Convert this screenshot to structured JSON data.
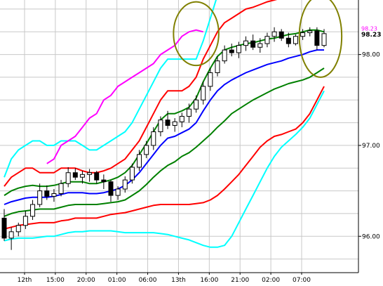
{
  "chart_data": {
    "type": "line",
    "title": "",
    "xlabel": "",
    "ylabel": "",
    "ylim": [
      95.6,
      98.6
    ],
    "grid": true,
    "x_tick_labels": [
      "12th",
      "15:00",
      "20:00",
      "01:00",
      "06:00",
      "13th",
      "16:00",
      "21:00",
      "02:00",
      "07:00"
    ],
    "y_tick_labels": [
      {
        "value": 96.0,
        "label": "96.00"
      },
      {
        "value": 97.0,
        "label": "97.00"
      },
      {
        "value": 98.0,
        "label": "98.00"
      }
    ],
    "last_price_label": "98.23",
    "last_price_value": 98.23,
    "upper_price_label": "98.23",
    "upper_price_value": 98.27,
    "x_count": 46,
    "candles": [
      [
        96.2,
        96.3,
        95.95,
        95.98
      ],
      [
        95.98,
        96.1,
        95.85,
        96.05
      ],
      [
        96.05,
        96.15,
        96.0,
        96.12
      ],
      [
        96.12,
        96.28,
        96.08,
        96.22
      ],
      [
        96.22,
        96.4,
        96.18,
        96.35
      ],
      [
        96.35,
        96.58,
        96.32,
        96.5
      ],
      [
        96.5,
        96.56,
        96.4,
        96.44
      ],
      [
        96.44,
        96.52,
        96.38,
        96.47
      ],
      [
        96.47,
        96.62,
        96.44,
        96.58
      ],
      [
        96.58,
        96.76,
        96.54,
        96.7
      ],
      [
        96.7,
        96.75,
        96.62,
        96.65
      ],
      [
        96.65,
        96.72,
        96.58,
        96.68
      ],
      [
        96.68,
        96.74,
        96.6,
        96.7
      ],
      [
        96.7,
        96.72,
        96.58,
        96.62
      ],
      [
        96.62,
        96.68,
        96.52,
        96.6
      ],
      [
        96.6,
        96.62,
        96.38,
        96.45
      ],
      [
        96.45,
        96.55,
        96.4,
        96.52
      ],
      [
        96.52,
        96.66,
        96.48,
        96.62
      ],
      [
        96.62,
        96.8,
        96.58,
        96.76
      ],
      [
        96.76,
        96.95,
        96.72,
        96.9
      ],
      [
        96.9,
        97.05,
        96.86,
        97.0
      ],
      [
        97.0,
        97.2,
        96.95,
        97.15
      ],
      [
        97.15,
        97.32,
        97.1,
        97.28
      ],
      [
        97.28,
        97.38,
        97.18,
        97.22
      ],
      [
        97.22,
        97.3,
        97.15,
        97.26
      ],
      [
        97.26,
        97.36,
        97.2,
        97.32
      ],
      [
        97.32,
        97.46,
        97.25,
        97.4
      ],
      [
        97.4,
        97.55,
        97.36,
        97.5
      ],
      [
        97.5,
        97.7,
        97.45,
        97.65
      ],
      [
        97.65,
        97.85,
        97.6,
        97.8
      ],
      [
        97.8,
        97.98,
        97.76,
        97.93
      ],
      [
        97.93,
        98.1,
        97.9,
        98.05
      ],
      [
        98.05,
        98.12,
        97.98,
        98.02
      ],
      [
        98.02,
        98.14,
        97.96,
        98.1
      ],
      [
        98.1,
        98.2,
        98.04,
        98.15
      ],
      [
        98.15,
        98.22,
        98.05,
        98.08
      ],
      [
        98.08,
        98.18,
        98.02,
        98.12
      ],
      [
        98.12,
        98.24,
        98.08,
        98.2
      ],
      [
        98.2,
        98.3,
        98.14,
        98.25
      ],
      [
        98.25,
        98.28,
        98.15,
        98.18
      ],
      [
        98.18,
        98.24,
        98.08,
        98.12
      ],
      [
        98.12,
        98.22,
        98.1,
        98.2
      ],
      [
        98.2,
        98.28,
        98.16,
        98.24
      ],
      [
        98.24,
        98.3,
        98.2,
        98.26
      ],
      [
        98.26,
        98.3,
        98.05,
        98.1
      ],
      [
        98.1,
        98.28,
        98.08,
        98.23
      ]
    ],
    "series": [
      {
        "color": "#00ffff",
        "values": [
          96.65,
          96.85,
          96.95,
          97.0,
          97.05,
          97.05,
          97.0,
          97.0,
          97.05,
          97.05,
          97.05,
          97.0,
          96.95,
          96.95,
          97.0,
          97.05,
          97.1,
          97.15,
          97.25,
          97.4,
          97.55,
          97.7,
          97.85,
          97.95,
          97.95,
          97.95,
          97.95,
          97.95,
          98.15,
          98.4,
          98.65,
          98.8,
          98.85,
          98.9,
          98.92,
          98.95,
          98.97,
          99.0,
          99.0,
          99.03,
          99.05,
          99.05,
          99.05,
          99.02,
          98.95,
          98.85
        ]
      },
      {
        "color": "#ff0000",
        "values": [
          96.55,
          96.65,
          96.7,
          96.75,
          96.75,
          96.7,
          96.7,
          96.7,
          96.75,
          96.75,
          96.75,
          96.72,
          96.7,
          96.7,
          96.72,
          96.75,
          96.8,
          96.85,
          96.95,
          97.05,
          97.2,
          97.35,
          97.5,
          97.6,
          97.6,
          97.6,
          97.65,
          97.75,
          97.95,
          98.1,
          98.25,
          98.35,
          98.4,
          98.45,
          98.5,
          98.52,
          98.55,
          98.58,
          98.6,
          98.62,
          98.65,
          98.65,
          98.68,
          98.7,
          98.68,
          98.62
        ]
      },
      {
        "color": "#008000",
        "values": [
          96.45,
          96.5,
          96.53,
          96.55,
          96.56,
          96.55,
          96.55,
          96.56,
          96.58,
          96.6,
          96.6,
          96.6,
          96.58,
          96.58,
          96.6,
          96.62,
          96.65,
          96.7,
          96.78,
          96.9,
          97.02,
          97.15,
          97.28,
          97.35,
          97.35,
          97.38,
          97.42,
          97.52,
          97.7,
          97.85,
          97.98,
          98.05,
          98.08,
          98.1,
          98.12,
          98.13,
          98.15,
          98.17,
          98.18,
          98.2,
          98.22,
          98.23,
          98.25,
          98.27,
          98.27,
          98.25
        ]
      },
      {
        "color": "#0000ff",
        "values": [
          96.35,
          96.38,
          96.4,
          96.42,
          96.43,
          96.43,
          96.43,
          96.44,
          96.46,
          96.48,
          96.48,
          96.48,
          96.47,
          96.47,
          96.48,
          96.5,
          96.52,
          96.56,
          96.62,
          96.7,
          96.8,
          96.9,
          97.0,
          97.08,
          97.1,
          97.14,
          97.18,
          97.25,
          97.38,
          97.5,
          97.6,
          97.67,
          97.72,
          97.76,
          97.8,
          97.83,
          97.86,
          97.89,
          97.91,
          97.93,
          97.96,
          97.98,
          98.0,
          98.03,
          98.05,
          98.05
        ]
      },
      {
        "color": "#008000",
        "values": [
          96.22,
          96.25,
          96.27,
          96.28,
          96.29,
          96.3,
          96.3,
          96.3,
          96.32,
          96.34,
          96.35,
          96.35,
          96.35,
          96.35,
          96.36,
          96.37,
          96.38,
          96.4,
          96.45,
          96.5,
          96.57,
          96.65,
          96.72,
          96.78,
          96.82,
          96.88,
          96.92,
          96.98,
          97.05,
          97.12,
          97.2,
          97.27,
          97.35,
          97.4,
          97.45,
          97.5,
          97.54,
          97.58,
          97.62,
          97.65,
          97.68,
          97.7,
          97.72,
          97.75,
          97.8,
          97.85
        ]
      },
      {
        "color": "#ff0000",
        "values": [
          96.08,
          96.1,
          96.12,
          96.13,
          96.14,
          96.15,
          96.15,
          96.15,
          96.17,
          96.18,
          96.2,
          96.2,
          96.2,
          96.2,
          96.22,
          96.24,
          96.25,
          96.26,
          96.28,
          96.3,
          96.32,
          96.34,
          96.35,
          96.35,
          96.35,
          96.35,
          96.35,
          96.36,
          96.37,
          96.4,
          96.45,
          96.52,
          96.6,
          96.68,
          96.78,
          96.88,
          96.98,
          97.05,
          97.1,
          97.12,
          97.15,
          97.18,
          97.25,
          97.35,
          97.5,
          97.65
        ]
      },
      {
        "color": "#00ffff",
        "values": [
          95.95,
          95.97,
          95.98,
          95.98,
          95.98,
          95.99,
          96.0,
          96.0,
          96.02,
          96.04,
          96.05,
          96.05,
          96.06,
          96.06,
          96.06,
          96.06,
          96.05,
          96.04,
          96.04,
          96.04,
          96.04,
          96.04,
          96.03,
          96.02,
          96.0,
          95.98,
          95.96,
          95.93,
          95.9,
          95.88,
          95.88,
          95.9,
          96.0,
          96.15,
          96.3,
          96.45,
          96.6,
          96.75,
          96.88,
          96.98,
          97.05,
          97.12,
          97.2,
          97.3,
          97.45,
          97.6
        ]
      },
      {
        "color": "#ff00ff",
        "values": [
          null,
          null,
          null,
          null,
          null,
          null,
          96.8,
          96.85,
          97.0,
          97.05,
          97.1,
          97.2,
          97.3,
          97.35,
          97.5,
          97.55,
          97.65,
          97.7,
          97.75,
          97.8,
          97.85,
          97.9,
          98.0,
          98.05,
          98.1,
          98.2,
          98.25,
          98.27,
          98.25,
          null,
          null,
          null,
          null,
          null,
          null,
          null,
          null,
          null,
          null,
          null,
          null,
          null,
          null,
          null,
          null,
          null
        ]
      }
    ],
    "annotations": [
      {
        "type": "ellipse",
        "color": "#808000",
        "x_center_index": 27,
        "y_center": 98.23,
        "x_radius_bars": 1.8,
        "y_radius": 0.35
      },
      {
        "type": "ellipse",
        "color": "#808000",
        "x_center_index": 44.5,
        "y_center": 98.2,
        "x_radius_bars": 1.6,
        "y_radius": 0.45
      }
    ],
    "colors": {
      "background": "#ffffff",
      "grid": "#c8c8c8",
      "axis": "#000000",
      "candle_up": "#ffffff",
      "candle_down": "#000000",
      "candle_border": "#000000"
    }
  }
}
